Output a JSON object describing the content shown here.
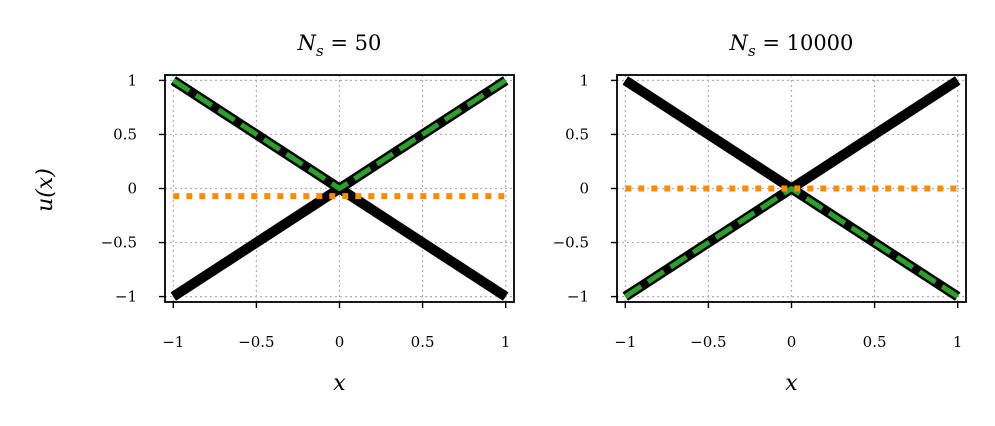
{
  "figure": {
    "ylabel": "u(x)"
  },
  "colors": {
    "black_series": "#000000",
    "green_series": "#2ca02c",
    "orange_series": "#ff8c00",
    "grid": "#b0b0b0"
  },
  "chart_data": [
    {
      "type": "line",
      "title_base": "N",
      "title_sub": "s",
      "title_eq": " = ",
      "title_value": "50",
      "xlabel": "x",
      "ylabel": "u(x)",
      "xlim": [
        -1.05,
        1.05
      ],
      "ylim": [
        -1.05,
        1.05
      ],
      "grid": true,
      "xticks": [
        -1,
        -0.5,
        0,
        0.5,
        1
      ],
      "xtick_labels": [
        "−1",
        "−0.5",
        "0",
        "0.5",
        "1"
      ],
      "yticks": [
        1,
        0.5,
        0,
        -0.5,
        -1
      ],
      "ytick_labels": [
        "1",
        "0.5",
        "0",
        "−0.5",
        "−1"
      ],
      "series": [
        {
          "style": "solid-thick",
          "color": "#000000",
          "x": [
            -1,
            0,
            1
          ],
          "y": [
            -1,
            0,
            -1
          ]
        },
        {
          "style": "solid-thick",
          "color": "#000000",
          "x": [
            -1,
            0,
            1
          ],
          "y": [
            1,
            0,
            1
          ]
        },
        {
          "style": "dashed",
          "color": "#2ca02c",
          "x": [
            -1,
            0,
            1
          ],
          "y": [
            1,
            0,
            1
          ]
        },
        {
          "style": "dotted",
          "color": "#ff8c00",
          "x": [
            -1,
            1
          ],
          "y": [
            -0.07,
            -0.07
          ]
        }
      ]
    },
    {
      "type": "line",
      "title_base": "N",
      "title_sub": "s",
      "title_eq": " = ",
      "title_value": "10000",
      "xlabel": "x",
      "ylabel": "",
      "xlim": [
        -1.05,
        1.05
      ],
      "ylim": [
        -1.05,
        1.05
      ],
      "grid": true,
      "xticks": [
        -1,
        -0.5,
        0,
        0.5,
        1
      ],
      "xtick_labels": [
        "−1",
        "−0.5",
        "0",
        "0.5",
        "1"
      ],
      "yticks": [
        1,
        0.5,
        0,
        -0.5,
        -1
      ],
      "ytick_labels": [
        "1",
        "0.5",
        "0",
        "−0.5",
        "−1"
      ],
      "series": [
        {
          "style": "solid-thick",
          "color": "#000000",
          "x": [
            -1,
            0,
            1
          ],
          "y": [
            1,
            0,
            1
          ]
        },
        {
          "style": "solid-thick",
          "color": "#000000",
          "x": [
            -1,
            0,
            1
          ],
          "y": [
            -1,
            0,
            -1
          ]
        },
        {
          "style": "dashed",
          "color": "#2ca02c",
          "x": [
            -1,
            0,
            1
          ],
          "y": [
            -1,
            0,
            -1
          ]
        },
        {
          "style": "dotted",
          "color": "#ff8c00",
          "x": [
            -1,
            1
          ],
          "y": [
            0,
            0
          ]
        }
      ]
    }
  ]
}
